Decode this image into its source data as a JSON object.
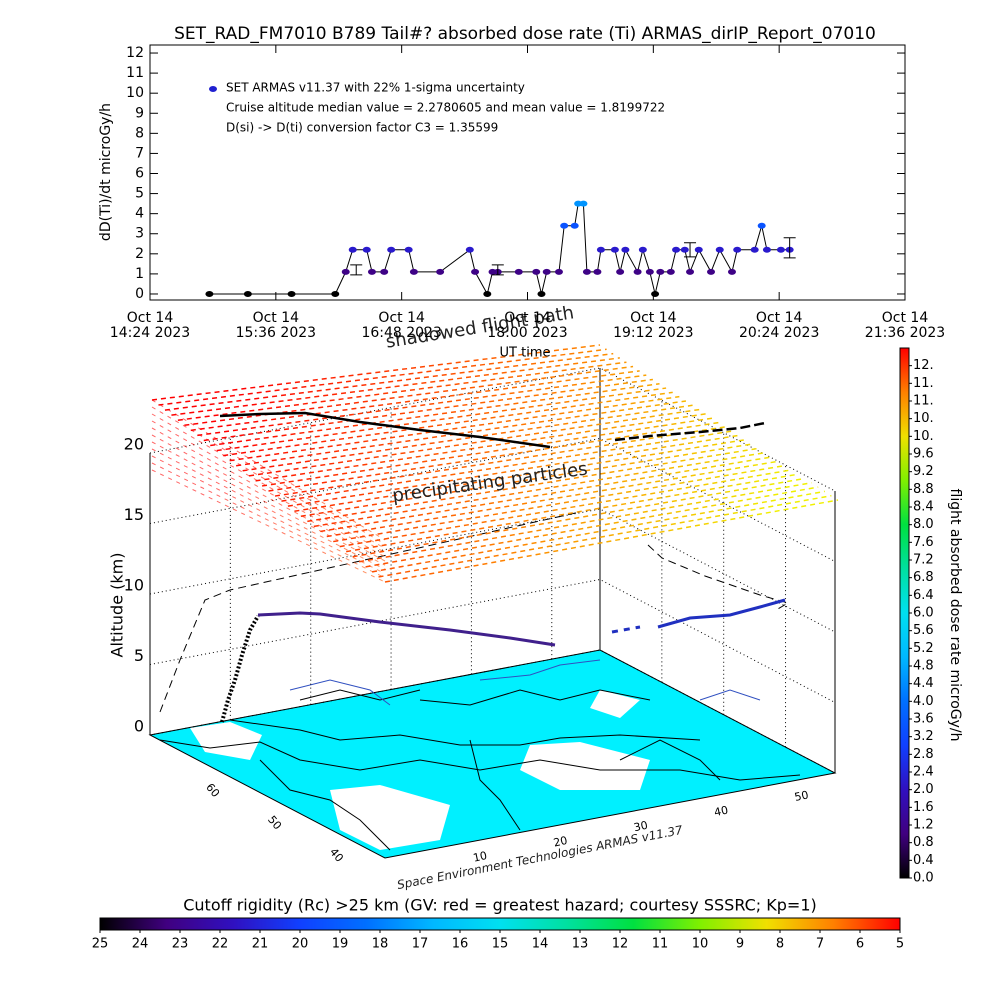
{
  "chart_data": [
    {
      "type": "scatter",
      "title": "SET_RAD_FM7010  B789 Tail#? absorbed dose rate (Ti) ARMAS_dirIP_Report_07010",
      "ylabel": "dD(Ti)/dt microGy/h",
      "xlabel": "UT time",
      "annotations": [
        "Cruise altitude median value = 2.2780605 and mean value = 1.8199722",
        "D(si) -> D(ti) conversion factor C3 = 1.35599"
      ],
      "xlim": [
        "2023-10-14T14:24",
        "2023-10-14T21:36"
      ],
      "xticks": [
        {
          "value": "2023-10-14T14:24",
          "label": [
            "Oct 14",
            "14:24 2023"
          ]
        },
        {
          "value": "2023-10-14T15:36",
          "label": [
            "Oct 14",
            "15:36 2023"
          ]
        },
        {
          "value": "2023-10-14T16:48",
          "label": [
            "Oct 14",
            "16:48 2023"
          ]
        },
        {
          "value": "2023-10-14T18:00",
          "label": [
            "Oct 14",
            "18:00 2023"
          ]
        },
        {
          "value": "2023-10-14T19:12",
          "label": [
            "Oct 14",
            "19:12 2023"
          ]
        },
        {
          "value": "2023-10-14T20:24",
          "label": [
            "Oct 14",
            "20:24 2023"
          ]
        },
        {
          "value": "2023-10-14T21:36",
          "label": [
            "Oct 14",
            "21:36 2023"
          ]
        }
      ],
      "ylim": [
        -0.3,
        12.4
      ],
      "yticks": [
        0,
        1,
        2,
        3,
        4,
        5,
        6,
        7,
        8,
        9,
        10,
        11,
        12
      ],
      "x": [
        "2023-10-14T14:58",
        "2023-10-14T15:20",
        "2023-10-14T15:45",
        "2023-10-14T16:10",
        "2023-10-14T16:16",
        "2023-10-14T16:20",
        "2023-10-14T16:28",
        "2023-10-14T16:31",
        "2023-10-14T16:38",
        "2023-10-14T16:42",
        "2023-10-14T16:52",
        "2023-10-14T16:55",
        "2023-10-14T17:10",
        "2023-10-14T17:27",
        "2023-10-14T17:30",
        "2023-10-14T17:37",
        "2023-10-14T17:40",
        "2023-10-14T17:43",
        "2023-10-14T17:55",
        "2023-10-14T18:05",
        "2023-10-14T18:08",
        "2023-10-14T18:11",
        "2023-10-14T18:18",
        "2023-10-14T18:21",
        "2023-10-14T18:27",
        "2023-10-14T18:29",
        "2023-10-14T18:32",
        "2023-10-14T18:34",
        "2023-10-14T18:40",
        "2023-10-14T18:42",
        "2023-10-14T18:50",
        "2023-10-14T18:53",
        "2023-10-14T18:56",
        "2023-10-14T19:03",
        "2023-10-14T19:06",
        "2023-10-14T19:10",
        "2023-10-14T19:13",
        "2023-10-14T19:16",
        "2023-10-14T19:22",
        "2023-10-14T19:25",
        "2023-10-14T19:30",
        "2023-10-14T19:33",
        "2023-10-14T19:38",
        "2023-10-14T19:45",
        "2023-10-14T19:50",
        "2023-10-14T19:57",
        "2023-10-14T20:00",
        "2023-10-14T20:10",
        "2023-10-14T20:14",
        "2023-10-14T20:17",
        "2023-10-14T20:25",
        "2023-10-14T20:30"
      ],
      "series": [
        {
          "name": "SET ARMAS v11.37 with 22% 1-sigma uncertainty",
          "color": "#2020d0",
          "values": [
            0,
            0,
            0,
            0,
            1.1,
            2.2,
            2.2,
            1.1,
            1.1,
            2.2,
            2.2,
            1.1,
            1.1,
            2.2,
            1.1,
            0,
            1.1,
            1.1,
            1.1,
            1.1,
            0,
            1.1,
            1.1,
            3.4,
            3.4,
            4.5,
            4.5,
            1.1,
            1.1,
            2.2,
            2.2,
            1.1,
            2.2,
            1.1,
            2.2,
            1.1,
            0,
            1.1,
            1.1,
            2.2,
            2.2,
            1.1,
            2.2,
            1.1,
            2.2,
            1.1,
            2.2,
            2.2,
            3.4,
            2.2,
            2.2,
            2.2
          ]
        }
      ],
      "error_bars": [
        {
          "x": "2023-10-14T16:22",
          "value": 1.2,
          "error": 0.25
        },
        {
          "x": "2023-10-14T17:43",
          "value": 1.2,
          "error": 0.25
        },
        {
          "x": "2023-10-14T19:33",
          "value": 2.2,
          "error": 0.35
        },
        {
          "x": "2023-10-14T20:30",
          "value": 2.3,
          "error": 0.5
        }
      ]
    },
    {
      "type": "map3d",
      "zlabel": "Altitude (km)",
      "zlim": [
        0,
        20
      ],
      "zticks": [
        0,
        5,
        10,
        15,
        20
      ],
      "xlim": [
        0,
        56
      ],
      "xticks": [
        10,
        20,
        30,
        40,
        50
      ],
      "ylim": [
        70,
        32
      ],
      "yticks": [
        60,
        50,
        40
      ],
      "annotations": [
        "shadowed flight path",
        "precipitating particles",
        "Space Environment Technologies ARMAS v11.37"
      ]
    },
    {
      "type": "colorbar",
      "orientation": "vertical",
      "label": "flight absorbed dose rate microGy/h",
      "lim": [
        0,
        12
      ],
      "colors": [
        "#000000",
        "#400080",
        "#3010c0",
        "#1040ff",
        "#0070ff",
        "#00b8ff",
        "#00e0f0",
        "#00e0a0",
        "#00e040",
        "#80f000",
        "#f0e000",
        "#ff8000",
        "#ff0000"
      ],
      "ticks": [
        {
          "value": 0,
          "label": "0.0"
        },
        0.4,
        0.8,
        1.2,
        1.6,
        {
          "value": 2,
          "label": "2.0"
        },
        2.4,
        2.8,
        3.2,
        3.6,
        {
          "value": 4,
          "label": "4.0"
        },
        4.4,
        4.8,
        5.2,
        5.6,
        {
          "value": 6,
          "label": "6.0"
        },
        6.4,
        6.8,
        7.2,
        7.6,
        {
          "value": 8,
          "label": "8.0"
        },
        8.4,
        8.8,
        9.2,
        9.6,
        {
          "value": 10,
          "label": "10."
        },
        {
          "value": 10.4,
          "label": "10."
        },
        {
          "value": 10.8,
          "label": "11."
        },
        {
          "value": 11.2,
          "label": "11."
        },
        {
          "value": 11.6,
          "label": "12."
        }
      ]
    },
    {
      "type": "colorbar",
      "orientation": "horizontal",
      "label": "Cutoff rigidity (Rc) >25 km (GV: red = greatest hazard; courtesy SSSRC; Kp=1)",
      "lim": [
        25,
        5
      ],
      "colors": [
        "#000000",
        "#400080",
        "#3010c0",
        "#1040ff",
        "#0070ff",
        "#00b8ff",
        "#00e0f0",
        "#00e0a0",
        "#00e040",
        "#80f000",
        "#f0e000",
        "#ff8000",
        "#ff0000"
      ],
      "ticks": [
        25,
        24,
        23,
        22,
        21,
        20,
        19,
        18,
        17,
        16,
        15,
        14,
        13,
        12,
        11,
        10,
        9,
        8,
        7,
        6,
        5
      ]
    }
  ]
}
